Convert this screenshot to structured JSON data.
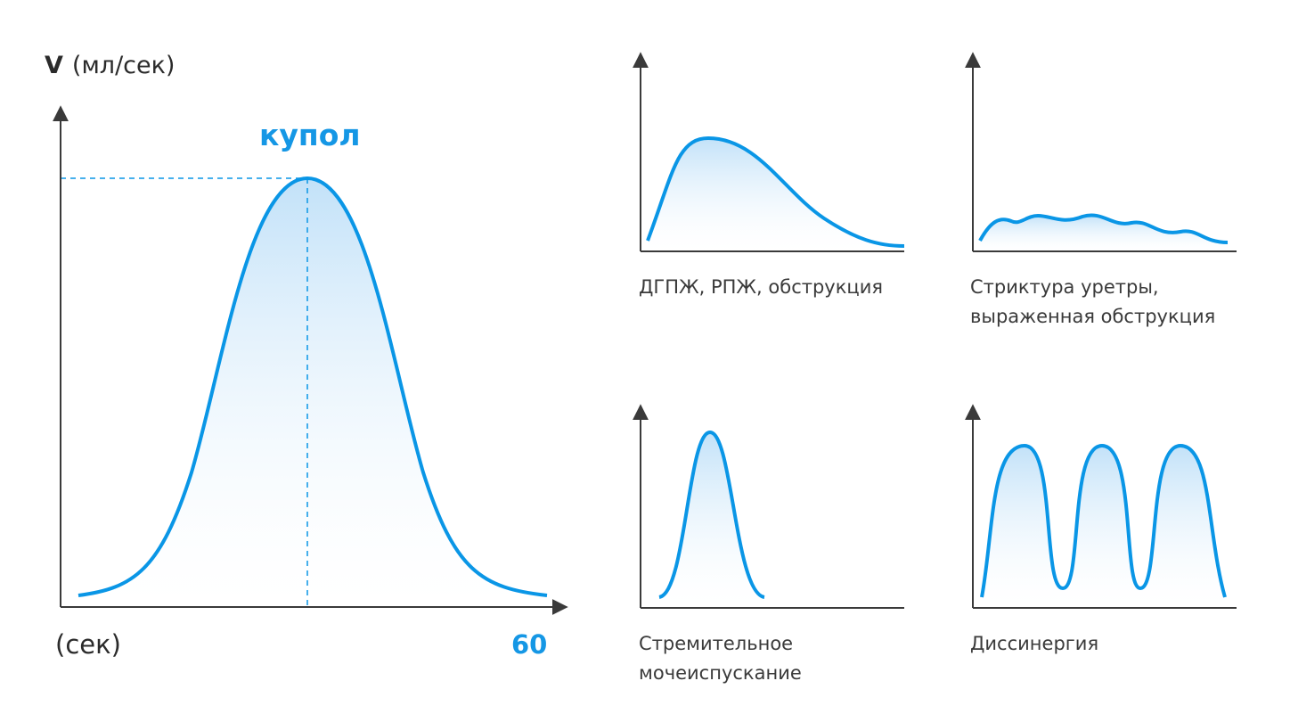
{
  "main_chart": {
    "y_label_symbol": "V",
    "y_label_unit": "(мл/сек)",
    "peak_label": "купол",
    "x_label_unit": "(сек)",
    "x_max_label": "60"
  },
  "panels": [
    {
      "id": "dgpzh",
      "caption_lines": [
        "ДГПЖ, РПЖ, обструкция"
      ]
    },
    {
      "id": "striktura",
      "caption_lines": [
        "Стриктура уретры,",
        "выраженная обструкция"
      ]
    },
    {
      "id": "stremitelnoe",
      "caption_lines": [
        "Стремительное",
        "мочеиспускание"
      ]
    },
    {
      "id": "dissinergiya",
      "caption_lines": [
        "Диссинергия"
      ]
    }
  ],
  "colors": {
    "curve": "#0a96e6",
    "accent_text": "#1597e5",
    "axis": "#3a3a3a"
  }
}
